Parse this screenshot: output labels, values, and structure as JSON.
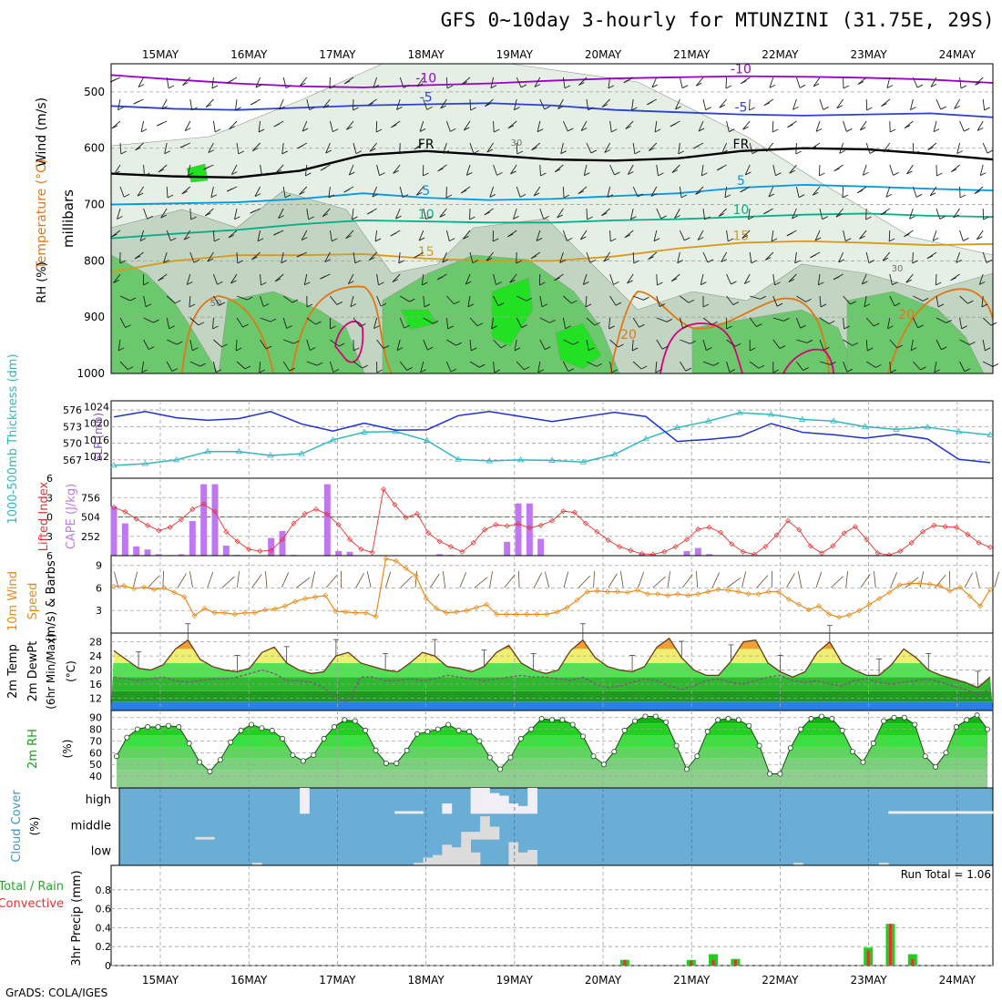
{
  "title": "GFS 0~10day 3-hourly for MTUNZINI (31.75E, 29S)",
  "footer": "GrADS: COLA/IGES",
  "dates": [
    "15MAY",
    "16MAY",
    "17MAY",
    "18MAY",
    "19MAY",
    "20MAY",
    "21MAY",
    "22MAY",
    "23MAY",
    "24MAY"
  ],
  "colors": {
    "rh_light": "#e6efe6",
    "rh_mid": "#c2d4c2",
    "rh_dark": "#6cc86c",
    "rh_bright": "#22e022",
    "temp_neg10": "#9a00c8",
    "temp_neg5": "#2a40d8",
    "temp_fr": "#000000",
    "temp_5": "#0098e0",
    "temp_10": "#00b088",
    "temp_15": "#d89a1a",
    "temp_20": "#e07818",
    "temp_25": "#d80078",
    "slp": "#2030d0",
    "thickness": "#30b8c0",
    "cape": "#c078f0",
    "lifted": "#e83030",
    "wind10m": "#e88a18",
    "cloud_bg": "#6aaed6",
    "cloud_fill": "#f0f0f0",
    "precip_total": "#22cc22",
    "precip_conv": "#e83030"
  },
  "chart_data": [
    {
      "type": "heatmap",
      "name": "upper-air",
      "ylabel_parts": [
        "RH (%)",
        "Temperature (°C)",
        "Wind (m/s)"
      ],
      "ylabel_units": "millibars",
      "y_ticks": [
        500,
        600,
        700,
        800,
        900,
        1000
      ],
      "ylim": [
        1000,
        450
      ],
      "contour_labels": [
        "-10",
        "-5",
        "FR",
        "5",
        "10",
        "15",
        "20",
        "30",
        "50"
      ],
      "isotherms": [
        {
          "label": "-10",
          "level": [
            470,
            478,
            485,
            490,
            492,
            488,
            485,
            480,
            476,
            474,
            472,
            473,
            475,
            478,
            484
          ]
        },
        {
          "label": "-5",
          "level": [
            525,
            530,
            532,
            528,
            524,
            522,
            520,
            524,
            532,
            536,
            540,
            542,
            540,
            538,
            545
          ]
        },
        {
          "label": "FR",
          "level": [
            645,
            650,
            652,
            640,
            612,
            605,
            612,
            620,
            622,
            618,
            605,
            600,
            602,
            610,
            620
          ]
        },
        {
          "label": "5",
          "level": [
            700,
            698,
            696,
            690,
            680,
            688,
            692,
            690,
            685,
            680,
            670,
            665,
            668,
            672,
            675
          ]
        },
        {
          "label": "10",
          "level": [
            760,
            752,
            745,
            735,
            728,
            730,
            732,
            732,
            728,
            726,
            722,
            718,
            716,
            720,
            722
          ]
        },
        {
          "label": "15",
          "level": [
            820,
            800,
            790,
            790,
            788,
            796,
            800,
            800,
            792,
            778,
            768,
            765,
            768,
            772,
            770
          ]
        }
      ]
    },
    {
      "type": "line",
      "name": "thickness-slp",
      "ylabel_left": "1000-500mb Thickness (dm)",
      "ylabel_right": "SLP (mb)",
      "y_ticks_left": [
        567,
        570,
        573,
        576
      ],
      "y_ticks_right": [
        1012,
        1016,
        1020,
        1024
      ],
      "series": [
        {
          "name": "Thickness",
          "axis": "left",
          "values": [
            566.0,
            566.3,
            567.0,
            568.5,
            568.5,
            567.8,
            568.1,
            570.6,
            572.0,
            572.1,
            570.5,
            567.1,
            566.8,
            567.0,
            566.9,
            566.6,
            568.0,
            570.8,
            572.8,
            574.0,
            575.5,
            575.2,
            574.3,
            574.0,
            573.0,
            572.5,
            572.9,
            572.1,
            571.5
          ]
        },
        {
          "name": "SLP",
          "axis": "right",
          "values": [
            1021.5,
            1022.8,
            1021.3,
            1020.7,
            1021.1,
            1022.8,
            1019.8,
            1018.1,
            1020.0,
            1018.3,
            1018.4,
            1021.8,
            1022.8,
            1021.6,
            1020.4,
            1021.5,
            1022.6,
            1021.6,
            1015.6,
            1016.1,
            1016.8,
            1019.9,
            1017.8,
            1017.2,
            1016.4,
            1017.3,
            1016.2,
            1011.3,
            1010.5
          ]
        }
      ]
    },
    {
      "type": "bar",
      "name": "cape-lifted",
      "ylabel_left": "Lifted Index",
      "ylabel_right": "CAPE (J/kg)",
      "y_ticks_left": [
        -6,
        -3,
        0,
        3,
        6
      ],
      "y_ticks_right": [
        252,
        504,
        756
      ],
      "cape": [
        640,
        420,
        120,
        80,
        20,
        8,
        18,
        450,
        930,
        930,
        130,
        10,
        0,
        0,
        230,
        320,
        10,
        0,
        0,
        930,
        60,
        50,
        0,
        0,
        0,
        0,
        0,
        0,
        0,
        20,
        10,
        0,
        0,
        0,
        0,
        180,
        680,
        680,
        220,
        0,
        0,
        0,
        0,
        0,
        0,
        0,
        0,
        20,
        10,
        0,
        0,
        60,
        100,
        20,
        0,
        0,
        0,
        0,
        0,
        0,
        0,
        0,
        0,
        0,
        0,
        0,
        0,
        0,
        0,
        0,
        0,
        0,
        0,
        0,
        0,
        0,
        0,
        0,
        0
      ],
      "lifted_index": [
        -1.5,
        -0.8,
        0.3,
        1.3,
        2.1,
        1.6,
        0.4,
        -1.2,
        -2.0,
        -0.8,
        2.3,
        3.8,
        5.0,
        5.3,
        5.2,
        3.5,
        1.0,
        -0.5,
        -1.2,
        -0.4,
        1.2,
        3.5,
        5.0,
        5.5,
        -4.3,
        -1.9,
        0.1,
        -0.5,
        2.5,
        3.8,
        4.6,
        5.4,
        4.0,
        2.0,
        1.2,
        1.4,
        1.1,
        1.7,
        1.3,
        0.6,
        -0.9,
        -0.7,
        1.0,
        2.3,
        3.6,
        4.6,
        5.2,
        5.7,
        5.8,
        5.4,
        4.6,
        3.5,
        1.9,
        1.6,
        2.4,
        4.2,
        5.4,
        5.8,
        4.6,
        2.8,
        0.6,
        2.0,
        4.5,
        5.6,
        4.5,
        2.5,
        1.5,
        3.5,
        5.6,
        5.9,
        5.3,
        4.0,
        2.3,
        1.3,
        1.5,
        1.6,
        2.7,
        4.0,
        4.7
      ]
    },
    {
      "type": "line",
      "name": "wind10m",
      "ylabel": "10m Wind Speed (m/s) & Barbs",
      "y_ticks": [
        3,
        6,
        9
      ],
      "values": [
        6.2,
        6.3,
        5.9,
        6.1,
        5.8,
        6.0,
        5.4,
        4.8,
        2.3,
        3.3,
        2.7,
        2.7,
        2.5,
        2.7,
        2.7,
        3.1,
        3.2,
        3.6,
        4.2,
        4.6,
        4.8,
        5.0,
        2.9,
        2.8,
        2.7,
        2.7,
        2.2,
        9.9,
        9.6,
        8.6,
        7.6,
        4.6,
        3.3,
        2.7,
        2.8,
        3.0,
        3.4,
        3.8,
        2.5,
        2.5,
        2.5,
        2.5,
        2.5,
        2.5,
        2.8,
        3.4,
        4.4,
        5.5,
        5.6,
        5.5,
        5.5,
        5.4,
        5.7,
        5.2,
        5.2,
        5.0,
        5.2,
        5.0,
        5.2,
        5.5,
        5.8,
        5.7,
        5.5,
        5.2,
        5.2,
        5.5,
        5.5,
        4.5,
        3.8,
        3.1,
        3.6,
        2.5,
        2.1,
        2.4,
        3.0,
        3.8,
        4.6,
        5.4,
        6.4,
        6.6,
        6.6,
        6.5,
        6.3,
        5.6,
        6.1,
        4.9,
        3.6,
        5.8
      ]
    },
    {
      "type": "area",
      "name": "temperature-2m",
      "ylabel": "2m Temp 2m DewPt (6hr Min/Max) (°C)",
      "y_ticks": [
        12,
        16,
        20,
        24,
        28
      ],
      "temp": [
        25.5,
        23.0,
        20.5,
        20.0,
        21.5,
        26.0,
        28.5,
        23.0,
        21.0,
        20.0,
        19.5,
        20.5,
        25.0,
        26.5,
        22.0,
        20.0,
        19.0,
        19.5,
        24.0,
        25.0,
        22.0,
        21.0,
        20.0,
        19.5,
        22.0,
        25.0,
        24.0,
        21.0,
        20.5,
        19.5,
        21.0,
        25.0,
        27.0,
        22.0,
        20.0,
        19.0,
        20.0,
        25.5,
        28.5,
        23.5,
        21.0,
        20.0,
        19.5,
        21.0,
        26.5,
        29.0,
        23.5,
        20.0,
        18.5,
        18.5,
        22.5,
        28.0,
        28.5,
        22.0,
        19.5,
        18.0,
        19.5,
        25.0,
        28.0,
        22.0,
        20.0,
        18.5,
        18.5,
        21.5,
        26.0,
        23.5,
        20.0,
        18.5,
        17.5,
        16.5,
        15.0,
        18.0
      ],
      "dewpoint": [
        18.0,
        17.5,
        17.0,
        17.5,
        18.0,
        17.0,
        16.5,
        17.0,
        17.5,
        17.5,
        18.0,
        19.0,
        20.0,
        19.0,
        17.0,
        17.0,
        16.5,
        15.0,
        12.0,
        11.0,
        18.0,
        18.0,
        17.0,
        17.0,
        17.5,
        17.0,
        17.5,
        18.5,
        18.0,
        17.5,
        17.0,
        17.5,
        18.0,
        18.5,
        18.0,
        18.0,
        17.5,
        17.0,
        18.0,
        16.0,
        15.0,
        15.5,
        16.5,
        17.5,
        17.0,
        15.5,
        14.5,
        15.5,
        17.0,
        17.5,
        16.5,
        16.0,
        17.0,
        18.0,
        18.5,
        17.0,
        16.5,
        17.0,
        16.0,
        15.5,
        17.0,
        17.5,
        16.5,
        16.0,
        16.5,
        17.0,
        17.5,
        16.5,
        15.5,
        14.5,
        13.0,
        14.5
      ]
    },
    {
      "type": "area",
      "name": "rh-2m",
      "ylabel": "2m RH (%)",
      "y_ticks": [
        40,
        50,
        60,
        70,
        80,
        90
      ],
      "values": [
        57,
        73,
        80,
        82,
        82,
        83,
        82,
        68,
        52,
        44,
        54,
        69,
        79,
        84,
        81,
        79,
        72,
        58,
        53,
        58,
        72,
        82,
        88,
        87,
        79,
        62,
        51,
        51,
        62,
        76,
        78,
        80,
        84,
        79,
        78,
        70,
        56,
        46,
        56,
        72,
        80,
        89,
        88,
        88,
        84,
        74,
        57,
        50,
        61,
        79,
        87,
        91,
        91,
        86,
        66,
        46,
        57,
        78,
        88,
        89,
        88,
        83,
        66,
        42,
        42,
        64,
        80,
        89,
        91,
        89,
        79,
        61,
        52,
        68,
        87,
        90,
        90,
        84,
        57,
        48,
        60,
        82,
        88,
        92,
        80
      ]
    },
    {
      "type": "bar",
      "name": "cloud-cover",
      "ylabel": "Cloud Cover (%)",
      "layers": [
        "high",
        "middle",
        "low"
      ],
      "series": [
        {
          "name": "high",
          "values": [
            0,
            0,
            0,
            0,
            0,
            0,
            0,
            0,
            0,
            0,
            0,
            0,
            0,
            0,
            0,
            0,
            0,
            0,
            0,
            100,
            0,
            0,
            0,
            0,
            0,
            0,
            0,
            0,
            0,
            10,
            10,
            10,
            0,
            0,
            40,
            0,
            0,
            100,
            100,
            80,
            70,
            40,
            30,
            100,
            0,
            0,
            0,
            0,
            0,
            0,
            0,
            0,
            0,
            0,
            0,
            0,
            0,
            0,
            0,
            0,
            0,
            0,
            0,
            0,
            0,
            0,
            0,
            0,
            0,
            0,
            0,
            0,
            0,
            0,
            0,
            0,
            0,
            0,
            0,
            0,
            0,
            10,
            10,
            10,
            10,
            10,
            10,
            10,
            10,
            10,
            10,
            10
          ]
        },
        {
          "name": "middle",
          "values": [
            0,
            0,
            0,
            0,
            0,
            0,
            0,
            0,
            10,
            10,
            0,
            0,
            0,
            0,
            0,
            0,
            0,
            0,
            0,
            0,
            0,
            0,
            0,
            0,
            0,
            0,
            0,
            0,
            0,
            0,
            0,
            0,
            0,
            0,
            0,
            0,
            30,
            30,
            90,
            50,
            0,
            0,
            0,
            0,
            0,
            0,
            0,
            0,
            0,
            0,
            0,
            0,
            0,
            0,
            0,
            0,
            0,
            0,
            0,
            0,
            0,
            0,
            0,
            0,
            0,
            0,
            0,
            0,
            0,
            0,
            0,
            0,
            0,
            0,
            0,
            0,
            0,
            0,
            0,
            0,
            0,
            0,
            0,
            0,
            0,
            0,
            0,
            0,
            0,
            0,
            0,
            0
          ]
        },
        {
          "name": "low",
          "values": [
            0,
            0,
            0,
            0,
            0,
            0,
            0,
            0,
            0,
            0,
            0,
            0,
            0,
            0,
            10,
            0,
            0,
            0,
            0,
            0,
            0,
            0,
            0,
            0,
            0,
            0,
            0,
            0,
            0,
            0,
            0,
            10,
            30,
            40,
            80,
            70,
            100,
            50,
            0,
            0,
            0,
            90,
            50,
            60,
            0,
            0,
            0,
            0,
            0,
            0,
            0,
            0,
            0,
            0,
            0,
            0,
            0,
            0,
            0,
            0,
            0,
            0,
            0,
            0,
            0,
            0,
            0,
            0,
            0,
            0,
            0,
            10,
            0,
            0,
            0,
            0,
            0,
            0,
            0,
            0,
            10,
            0,
            0,
            0,
            0,
            0,
            0,
            0,
            0,
            0,
            0,
            0
          ]
        }
      ]
    },
    {
      "type": "bar",
      "name": "precip",
      "ylabel_left": "Total / Rain",
      "ylabel_sub": "Convective",
      "ylabel": "3hr Precip (mm)",
      "y_ticks": [
        0,
        0.2,
        0.4,
        0.6,
        0.8
      ],
      "annotation": "Run Total = 1.06",
      "bars": [
        {
          "t": 23.0,
          "total": 0.06,
          "conv": 0.06
        },
        {
          "t": 26.0,
          "total": 0.06,
          "conv": 0.05
        },
        {
          "t": 27.0,
          "total": 0.12,
          "conv": 0.06
        },
        {
          "t": 28.0,
          "total": 0.07,
          "conv": 0.06
        },
        {
          "t": 34.0,
          "total": 0.19,
          "conv": 0.16
        },
        {
          "t": 35.0,
          "total": 0.44,
          "conv": 0.44
        },
        {
          "t": 36.0,
          "total": 0.12,
          "conv": 0.07
        }
      ]
    }
  ]
}
